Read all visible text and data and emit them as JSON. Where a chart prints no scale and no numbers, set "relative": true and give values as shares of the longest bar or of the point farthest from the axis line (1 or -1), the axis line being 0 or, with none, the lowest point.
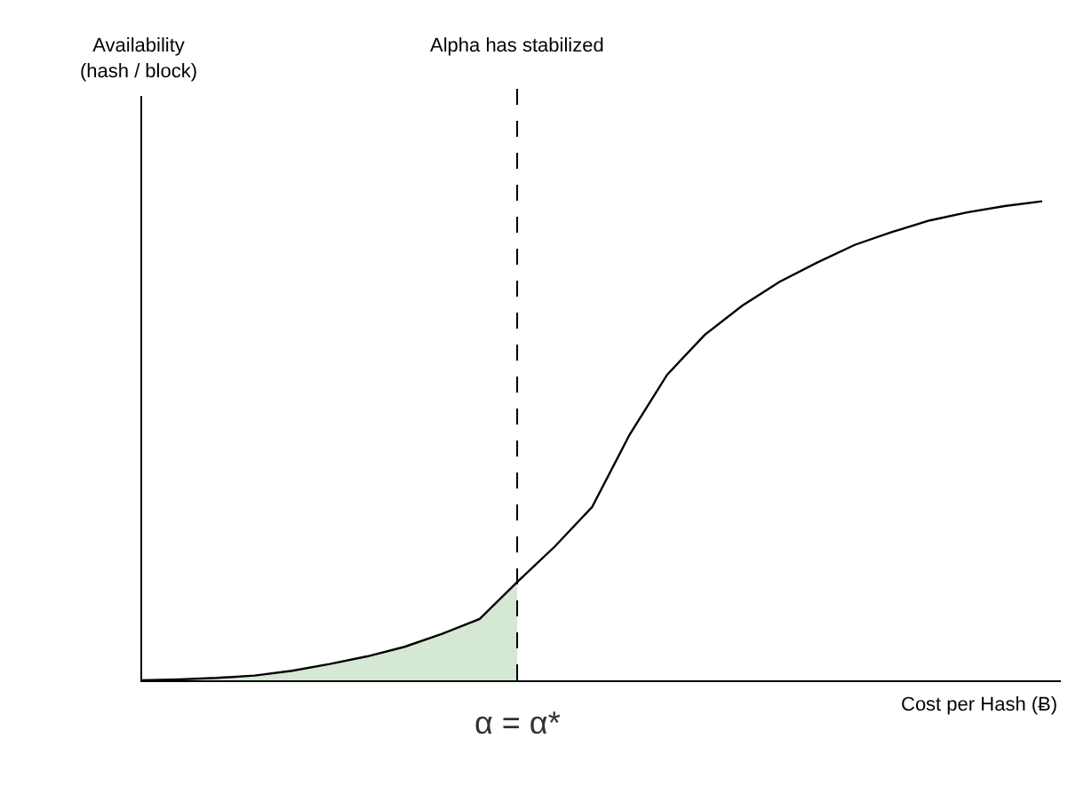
{
  "chart_data": {
    "type": "line",
    "relative": true,
    "xlabel": "Cost per Hash (Ƀ)",
    "categories": [
      null,
      null,
      null,
      null,
      null,
      null,
      null,
      null,
      null,
      null,
      null,
      null,
      null,
      null,
      null,
      null,
      null,
      null,
      null,
      null,
      null,
      null,
      null,
      null,
      null
    ],
    "tick_labels": false,
    "series": [
      {
        "type": "area",
        "color": "#d5e8d4",
        "values": [
          0,
          0.002,
          0.005,
          0.01,
          0.02,
          0.034,
          0.05,
          0.07,
          0.097,
          0.128,
          0.205,
          null,
          null,
          null,
          null,
          null,
          null,
          null,
          null,
          null,
          null,
          null,
          null,
          null,
          null
        ]
      },
      {
        "color": "#000000",
        "values": [
          0,
          0.002,
          0.005,
          0.01,
          0.02,
          0.034,
          0.05,
          0.07,
          0.097,
          0.128,
          0.205,
          0.279,
          0.362,
          0.513,
          0.638,
          0.721,
          0.782,
          0.832,
          0.872,
          0.909,
          0.936,
          0.96,
          0.977,
          0.99,
          1.0
        ]
      }
    ],
    "ref_lines": [
      {
        "axis": "x",
        "label": "Alpha has stabilized",
        "color": "#000000",
        "line_style": "dashed"
      }
    ],
    "annotations": [
      "Availability\n(hash / block)",
      "α = α*"
    ]
  }
}
